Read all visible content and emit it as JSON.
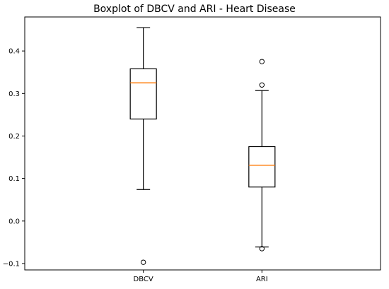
{
  "chart_data": {
    "type": "boxplot",
    "title": "Boxplot of DBCV and ARI - Heart Disease",
    "xlabel": "",
    "ylabel": "",
    "ylim": [
      -0.115,
      0.48
    ],
    "yticks": [
      -0.1,
      0.0,
      0.1,
      0.2,
      0.3,
      0.4
    ],
    "ytick_labels": [
      "−0.1",
      "0.0",
      "0.1",
      "0.2",
      "0.3",
      "0.4"
    ],
    "categories": [
      "DBCV",
      "ARI"
    ],
    "series": [
      {
        "name": "DBCV",
        "whisker_low": 0.074,
        "q1": 0.24,
        "median": 0.325,
        "q3": 0.358,
        "whisker_high": 0.455,
        "fliers": [
          -0.097
        ]
      },
      {
        "name": "ARI",
        "whisker_low": -0.061,
        "q1": 0.08,
        "median": 0.131,
        "q3": 0.175,
        "whisker_high": 0.307,
        "fliers": [
          0.375,
          0.32,
          -0.065
        ]
      }
    ],
    "colors": {
      "box": "#000000",
      "median": "#ff7f0e"
    },
    "grid": false
  }
}
